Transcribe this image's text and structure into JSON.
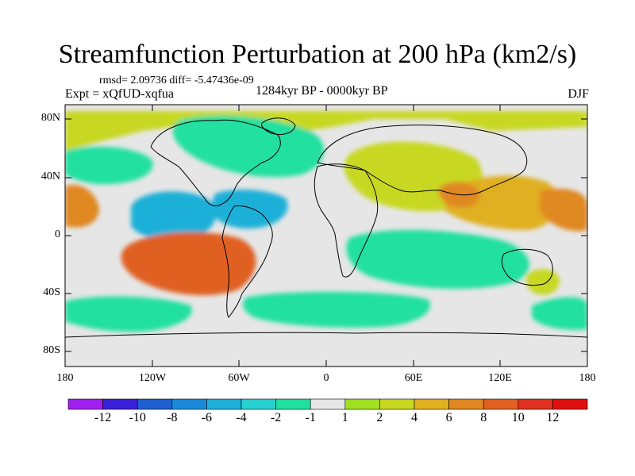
{
  "title": "Streamfunction Perturbation at 200 hPa (km2/s)",
  "stats": "rmsd= 2.09736 diff= -5.47436e-09",
  "experiment": "Expt = xQfUD-xqfua",
  "period": "1284kyr BP - 0000kyr BP",
  "season": "DJF",
  "lat_labels": [
    "80N",
    "40N",
    "0",
    "40S",
    "80S"
  ],
  "lon_labels": [
    "180",
    "120W",
    "60W",
    "0",
    "60E",
    "120E",
    "180"
  ],
  "colorbar": {
    "labels": [
      "-12",
      "-10",
      "-8",
      "-6",
      "-4",
      "-2",
      "-1",
      "1",
      "2",
      "4",
      "6",
      "8",
      "10",
      "12"
    ],
    "colors": [
      "#a020f0",
      "#3a1fd8",
      "#1f5fd0",
      "#1a8ad8",
      "#1eb0d8",
      "#28d0d0",
      "#20e0a0",
      "#e6e6e6",
      "#a0e020",
      "#c8d820",
      "#e0b020",
      "#e08820",
      "#e06020",
      "#e03020",
      "#e01010"
    ]
  },
  "map": {
    "background_color": "#e6e6e6",
    "anomaly_regions": [
      {
        "name": "polar-north-positive",
        "value": 2
      },
      {
        "name": "north-america-negative",
        "value": -2
      },
      {
        "name": "north-pacific-negative",
        "value": -2
      },
      {
        "name": "tropical-pacific-negative",
        "value": -6
      },
      {
        "name": "caribbean-negative",
        "value": -6
      },
      {
        "name": "south-pacific-positive",
        "value": 8
      },
      {
        "name": "eurasia-positive",
        "value": 2
      },
      {
        "name": "tibet-positive",
        "value": 6
      },
      {
        "name": "west-pacific-positive",
        "value": 4
      },
      {
        "name": "central-pacific-positive",
        "value": 6
      },
      {
        "name": "indian-ocean-negative",
        "value": -2
      },
      {
        "name": "southern-ocean-negative",
        "value": -2
      },
      {
        "name": "australia-positive",
        "value": 2
      }
    ]
  }
}
